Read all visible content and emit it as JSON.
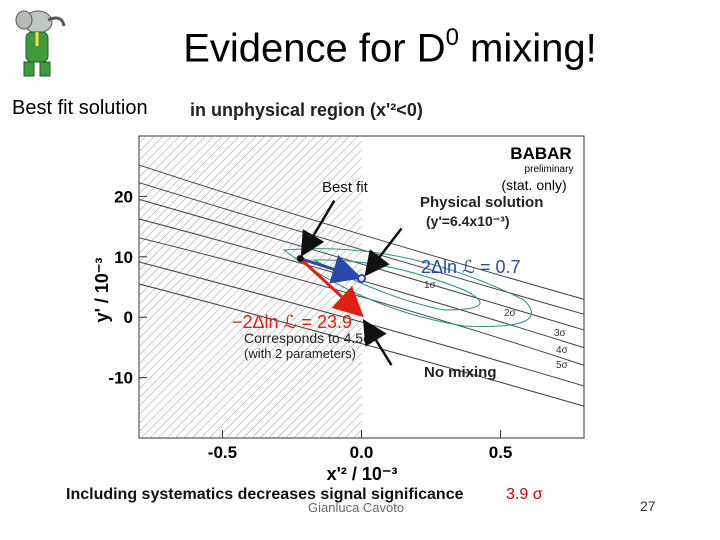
{
  "slide": {
    "title_main": "Evidence for D",
    "title_sup": "0",
    "title_end": " mixing!",
    "subtitle": "Best fit solution",
    "unphysical_label": "in unphysical region (x'²<0)",
    "footer_note": "Including systematics decreases signal significance",
    "significance": "3.9 σ",
    "author": "Gianluca Cavoto",
    "page_number": "27"
  },
  "chart_data": {
    "type": "scatter",
    "xlabel": "x'² / 10⁻³",
    "ylabel": "y' / 10⁻³",
    "xlim": [
      -0.8,
      0.8
    ],
    "ylim": [
      -20,
      30
    ],
    "x_ticks": [
      "-0.5",
      "0.0",
      "0.5"
    ],
    "y_ticks": [
      "20",
      "10",
      "0",
      "-10"
    ],
    "unphysical_region": {
      "x_max": 0.0
    },
    "best_fit": {
      "label": "Best fit",
      "x": -0.22,
      "y": 9.7
    },
    "physical_solution": {
      "label": "Physical solution",
      "sublabel": "(y'=6.4x10⁻³)",
      "x": 0.0,
      "y": 6.4
    },
    "no_mixing": {
      "label": "No mixing",
      "x": 0.0,
      "y": 0.0
    },
    "delta_physical": "2Δln ℒ = 0.7",
    "delta_nomix": "−2Δln ℒ = 23.9",
    "corresponds": "Corresponds to 4.5σ",
    "parameters": "(with 2 parameters)",
    "contour_labels": [
      "1σ",
      "2σ",
      "3σ",
      "4σ",
      "5σ"
    ],
    "experiment": "BABAR",
    "preliminary": "preliminary",
    "stat_only": "(stat. only)",
    "colors": {
      "best_fit_arrow": "#2a49a8",
      "no_mixing_arrow": "#e02010",
      "delta_text": "#e02010",
      "physical_text": "#2a49a8"
    }
  }
}
